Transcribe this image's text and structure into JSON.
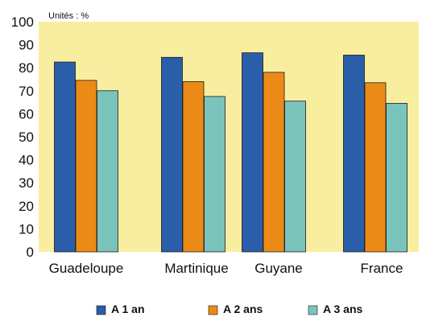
{
  "chart_data": {
    "type": "bar",
    "unit_label": "Unités : %",
    "categories": [
      "Guadeloupe",
      "Martinique",
      "Guyane",
      "France"
    ],
    "series": [
      {
        "name": "A 1 an",
        "values": [
          82.5,
          84.5,
          86.5,
          85.5
        ],
        "color": "#2a5ea8"
      },
      {
        "name": "A 2 ans",
        "values": [
          74.5,
          74.0,
          78.0,
          73.5
        ],
        "color": "#ec8a17"
      },
      {
        "name": "A 3 ans",
        "values": [
          70.0,
          67.5,
          65.5,
          64.5
        ],
        "color": "#7bc4bc"
      }
    ],
    "ylim": [
      0,
      100
    ],
    "yticks": [
      0,
      10,
      20,
      30,
      40,
      50,
      60,
      70,
      80,
      90,
      100
    ],
    "plot_background": "#f9eea0",
    "grid": false,
    "legend_position": "bottom"
  }
}
